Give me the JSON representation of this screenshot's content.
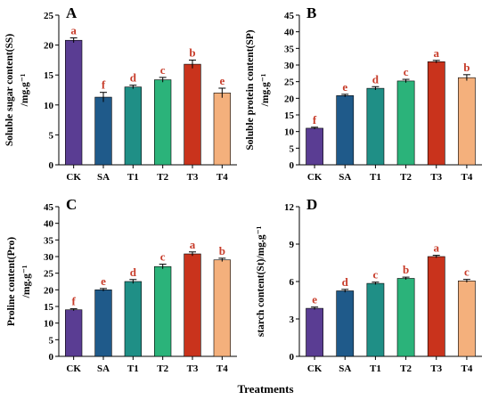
{
  "x_axis_title": "Treatments",
  "palette": {
    "CK": "#5a3d93",
    "SA": "#1f5a8a",
    "T1": "#1f8f86",
    "T2": "#2bb37a",
    "T3": "#c9331c",
    "T4": "#f4b07c",
    "sig_color": "#c73c2a"
  },
  "chart_data": [
    {
      "panel": "A",
      "type": "bar",
      "categories": [
        "CK",
        "SA",
        "T1",
        "T2",
        "T3",
        "T4"
      ],
      "values": [
        20.8,
        11.3,
        13.0,
        14.2,
        16.8,
        12.0
      ],
      "errors": [
        0.4,
        0.8,
        0.3,
        0.4,
        0.7,
        0.8
      ],
      "sig": [
        "a",
        "f",
        "d",
        "c",
        "b",
        "e"
      ],
      "ylabel": [
        "Soluble sugar content(SS)",
        "/mg.g⁻¹"
      ],
      "ylim": [
        0,
        25
      ],
      "yticks": [
        0,
        5,
        10,
        15,
        20,
        25
      ]
    },
    {
      "panel": "B",
      "type": "bar",
      "categories": [
        "CK",
        "SA",
        "T1",
        "T2",
        "T3",
        "T4"
      ],
      "values": [
        11.0,
        20.8,
        23.0,
        25.2,
        31.0,
        26.2
      ],
      "errors": [
        0.3,
        0.4,
        0.5,
        0.5,
        0.4,
        0.9
      ],
      "sig": [
        "f",
        "e",
        "d",
        "c",
        "a",
        "b"
      ],
      "ylabel": [
        "Soluble protein content(SP)",
        "/mg.g⁻¹"
      ],
      "ylim": [
        0,
        45
      ],
      "yticks": [
        0,
        5,
        10,
        15,
        20,
        25,
        30,
        35,
        40,
        45
      ]
    },
    {
      "panel": "C",
      "type": "bar",
      "categories": [
        "CK",
        "SA",
        "T1",
        "T2",
        "T3",
        "T4"
      ],
      "values": [
        14.0,
        20.0,
        22.5,
        27.0,
        30.8,
        29.0
      ],
      "errors": [
        0.3,
        0.4,
        0.6,
        0.7,
        0.6,
        0.5
      ],
      "sig": [
        "f",
        "e",
        "d",
        "c",
        "a",
        "b"
      ],
      "ylabel": [
        "Proline content(Pro)",
        "/mg.g⁻¹"
      ],
      "ylim": [
        0,
        45
      ],
      "yticks": [
        0,
        5,
        10,
        15,
        20,
        25,
        30,
        35,
        40,
        45
      ]
    },
    {
      "panel": "D",
      "type": "bar",
      "categories": [
        "CK",
        "SA",
        "T1",
        "T2",
        "T3",
        "T4"
      ],
      "values": [
        3.85,
        5.25,
        5.85,
        6.25,
        8.0,
        6.05
      ],
      "errors": [
        0.1,
        0.12,
        0.1,
        0.1,
        0.1,
        0.12
      ],
      "sig": [
        "e",
        "d",
        "c",
        "b",
        "a",
        "c"
      ],
      "ylabel": [
        "starch content(St)/mg.g⁻¹"
      ],
      "ylim": [
        0,
        12
      ],
      "yticks": [
        0,
        3,
        6,
        9,
        12
      ]
    }
  ]
}
